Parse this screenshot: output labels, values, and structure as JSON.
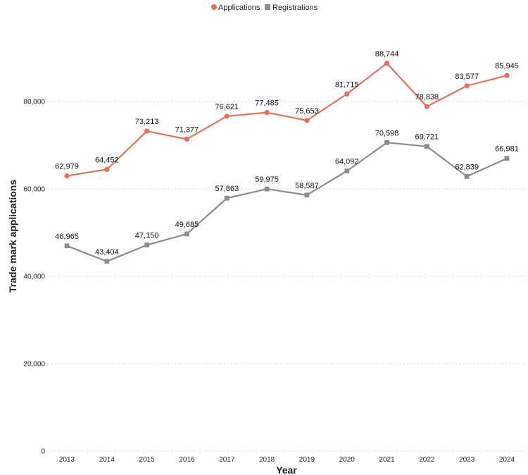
{
  "chart_data": {
    "type": "line",
    "title": "",
    "xlabel": "Year",
    "ylabel": "Trade mark applications",
    "x": [
      "2013",
      "2014",
      "2015",
      "2016",
      "2017",
      "2018",
      "2019",
      "2020",
      "2021",
      "2022",
      "2023",
      "2024"
    ],
    "ylim": [
      0,
      95000
    ],
    "yticks": [
      0,
      20000,
      40000,
      60000,
      80000
    ],
    "ytick_labels": [
      "0",
      "20,000",
      "40,000",
      "60,000",
      "80,000"
    ],
    "grid": true,
    "legend_position": "top-center",
    "series": [
      {
        "name": "Applications",
        "color": "#e0735a",
        "marker": "circle",
        "values": [
          62979,
          64452,
          73213,
          71377,
          76621,
          77485,
          75653,
          81715,
          88744,
          78838,
          83577,
          85945
        ],
        "labels": [
          "62,979",
          "64,452",
          "73,213",
          "71,377",
          "76,621",
          "77,485",
          "75,653",
          "81,715",
          "88,744",
          "78,838",
          "83,577",
          "85,945"
        ]
      },
      {
        "name": "Registrations",
        "color": "#8a8e93",
        "marker": "square",
        "values": [
          46965,
          43404,
          47150,
          49685,
          57863,
          59975,
          58587,
          64092,
          70598,
          69721,
          62839,
          66981
        ],
        "labels": [
          "46,965",
          "43,404",
          "47,150",
          "49,685",
          "57,863",
          "59,975",
          "58,587",
          "64,092",
          "70,598",
          "69,721",
          "62,839",
          "66,981"
        ]
      }
    ]
  }
}
